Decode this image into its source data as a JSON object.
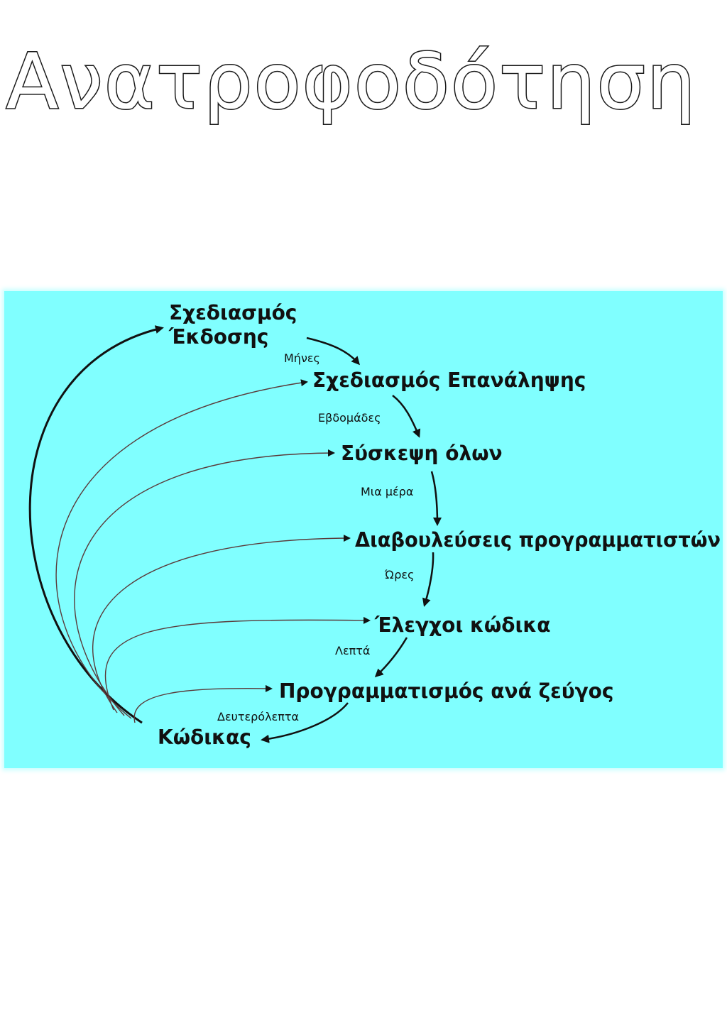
{
  "title": "Ανατροφοδότηση",
  "colors": {
    "panel": "#80ffff",
    "ink": "#111111",
    "arc": "#5a3a3a"
  },
  "diagram": {
    "nodes": [
      {
        "id": "release",
        "line1": "Σχεδιασμός",
        "line2": "Έκδοσης"
      },
      {
        "id": "iteration",
        "line1": "Σχεδιασμός Επανάληψης"
      },
      {
        "id": "standup",
        "line1": "Σύσκεψη όλων"
      },
      {
        "id": "negotiation",
        "line1": "Διαβουλεύσεις προγραμματιστών"
      },
      {
        "id": "tests",
        "line1": "Έλεγχοι κώδικα"
      },
      {
        "id": "pairing",
        "line1": "Προγραμματισμός ανά ζεύγος"
      },
      {
        "id": "code",
        "line1": "Κώδικας"
      }
    ],
    "durations": [
      "Μήνες",
      "Εβδομάδες",
      "Μια μέρα",
      "Ώρες",
      "Λεπτά",
      "Δευτερόλεπτα"
    ]
  }
}
